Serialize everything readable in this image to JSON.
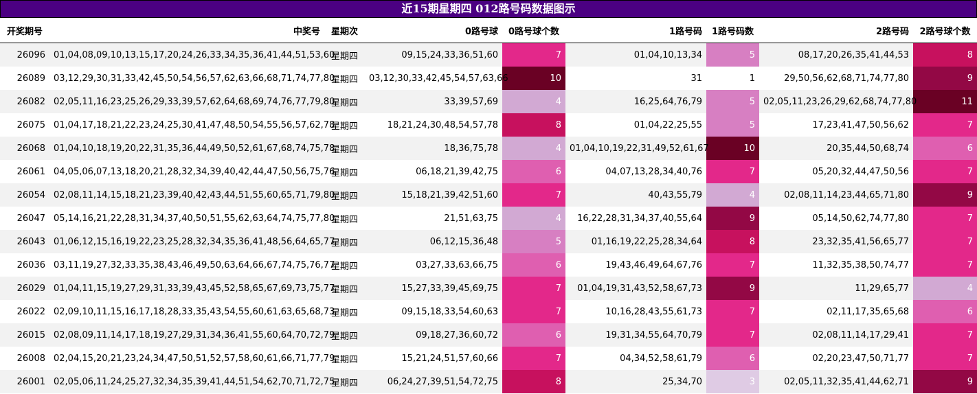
{
  "title": "近15期星期四 012路号码数据图示",
  "headers": {
    "issue": "开奖期号",
    "numbers": "中奖号",
    "weekday": "星期次",
    "road0": "0路号球",
    "road0_count": "0路号球个数",
    "road1": "1路号码",
    "road1_count": "1路号码数",
    "road2": "2路号码",
    "road2_count": "2路号球个数"
  },
  "rows": [
    {
      "issue": "26096",
      "numbers": "01,04,08,09,10,13,15,17,20,24,26,33,34,35,36,41,44,51,53,60",
      "weekday": "星期四",
      "road0": "09,15,24,33,36,51,60",
      "road0_count": "7",
      "road1": "01,04,10,13,34",
      "road1_count": "5",
      "road2": "08,17,20,26,35,41,44,53",
      "road2_count": "8"
    },
    {
      "issue": "26089",
      "numbers": "03,12,29,30,31,33,42,45,50,54,56,57,62,63,66,68,71,74,77,80",
      "weekday": "星期四",
      "road0": "03,12,30,33,42,45,54,57,63,66",
      "road0_count": "10",
      "road1": "31",
      "road1_count": "1",
      "road2": "29,50,56,62,68,71,74,77,80",
      "road2_count": "9"
    },
    {
      "issue": "26082",
      "numbers": "02,05,11,16,23,25,26,29,33,39,57,62,64,68,69,74,76,77,79,80",
      "weekday": "星期四",
      "road0": "33,39,57,69",
      "road0_count": "4",
      "road1": "16,25,64,76,79",
      "road1_count": "5",
      "road2": "02,05,11,23,26,29,62,68,74,77,80",
      "road2_count": "11"
    },
    {
      "issue": "26075",
      "numbers": "01,04,17,18,21,22,23,24,25,30,41,47,48,50,54,55,56,57,62,78",
      "weekday": "星期四",
      "road0": "18,21,24,30,48,54,57,78",
      "road0_count": "8",
      "road1": "01,04,22,25,55",
      "road1_count": "5",
      "road2": "17,23,41,47,50,56,62",
      "road2_count": "7"
    },
    {
      "issue": "26068",
      "numbers": "01,04,10,18,19,20,22,31,35,36,44,49,50,52,61,67,68,74,75,78",
      "weekday": "星期四",
      "road0": "18,36,75,78",
      "road0_count": "4",
      "road1": "01,04,10,19,22,31,49,52,61,67",
      "road1_count": "10",
      "road2": "20,35,44,50,68,74",
      "road2_count": "6"
    },
    {
      "issue": "26061",
      "numbers": "04,05,06,07,13,18,20,21,28,32,34,39,40,42,44,47,50,56,75,76",
      "weekday": "星期四",
      "road0": "06,18,21,39,42,75",
      "road0_count": "6",
      "road1": "04,07,13,28,34,40,76",
      "road1_count": "7",
      "road2": "05,20,32,44,47,50,56",
      "road2_count": "7"
    },
    {
      "issue": "26054",
      "numbers": "02,08,11,14,15,18,21,23,39,40,42,43,44,51,55,60,65,71,79,80",
      "weekday": "星期四",
      "road0": "15,18,21,39,42,51,60",
      "road0_count": "7",
      "road1": "40,43,55,79",
      "road1_count": "4",
      "road2": "02,08,11,14,23,44,65,71,80",
      "road2_count": "9"
    },
    {
      "issue": "26047",
      "numbers": "05,14,16,21,22,28,31,34,37,40,50,51,55,62,63,64,74,75,77,80",
      "weekday": "星期四",
      "road0": "21,51,63,75",
      "road0_count": "4",
      "road1": "16,22,28,31,34,37,40,55,64",
      "road1_count": "9",
      "road2": "05,14,50,62,74,77,80",
      "road2_count": "7"
    },
    {
      "issue": "26043",
      "numbers": "01,06,12,15,16,19,22,23,25,28,32,34,35,36,41,48,56,64,65,77",
      "weekday": "星期四",
      "road0": "06,12,15,36,48",
      "road0_count": "5",
      "road1": "01,16,19,22,25,28,34,64",
      "road1_count": "8",
      "road2": "23,32,35,41,56,65,77",
      "road2_count": "7"
    },
    {
      "issue": "26036",
      "numbers": "03,11,19,27,32,33,35,38,43,46,49,50,63,64,66,67,74,75,76,77",
      "weekday": "星期四",
      "road0": "03,27,33,63,66,75",
      "road0_count": "6",
      "road1": "19,43,46,49,64,67,76",
      "road1_count": "7",
      "road2": "11,32,35,38,50,74,77",
      "road2_count": "7"
    },
    {
      "issue": "26029",
      "numbers": "01,04,11,15,19,27,29,31,33,39,43,45,52,58,65,67,69,73,75,77",
      "weekday": "星期四",
      "road0": "15,27,33,39,45,69,75",
      "road0_count": "7",
      "road1": "01,04,19,31,43,52,58,67,73",
      "road1_count": "9",
      "road2": "11,29,65,77",
      "road2_count": "4"
    },
    {
      "issue": "26022",
      "numbers": "02,09,10,11,15,16,17,18,28,33,35,43,54,55,60,61,63,65,68,73",
      "weekday": "星期四",
      "road0": "09,15,18,33,54,60,63",
      "road0_count": "7",
      "road1": "10,16,28,43,55,61,73",
      "road1_count": "7",
      "road2": "02,11,17,35,65,68",
      "road2_count": "6"
    },
    {
      "issue": "26015",
      "numbers": "02,08,09,11,14,17,18,19,27,29,31,34,36,41,55,60,64,70,72,79",
      "weekday": "星期四",
      "road0": "09,18,27,36,60,72",
      "road0_count": "6",
      "road1": "19,31,34,55,64,70,79",
      "road1_count": "7",
      "road2": "02,08,11,14,17,29,41",
      "road2_count": "7"
    },
    {
      "issue": "26008",
      "numbers": "02,04,15,20,21,23,24,34,47,50,51,52,57,58,60,61,66,71,77,79",
      "weekday": "星期四",
      "road0": "15,21,24,51,57,60,66",
      "road0_count": "7",
      "road1": "04,34,52,58,61,79",
      "road1_count": "6",
      "road2": "02,20,23,47,50,71,77",
      "road2_count": "7"
    },
    {
      "issue": "26001",
      "numbers": "02,05,06,11,24,25,27,32,34,35,39,41,44,51,54,62,70,71,72,75",
      "weekday": "星期四",
      "road0": "06,24,27,39,51,54,72,75",
      "road0_count": "8",
      "road1": "25,34,70",
      "road1_count": "3",
      "road2": "02,05,11,32,35,41,44,62,71",
      "road2_count": "9"
    }
  ],
  "heat_colors": {
    "3": "#dfcbe4",
    "4": "#d2a9d3",
    "5": "#d77fc2",
    "6": "#df5fb0",
    "7": "#e3288a",
    "8": "#c7115e",
    "9": "#930845",
    "10": "#6a0124",
    "11": "#6a0124"
  },
  "heat_text_colors": {
    "light": "#1a1a1a",
    "dark": "#ffffff"
  }
}
